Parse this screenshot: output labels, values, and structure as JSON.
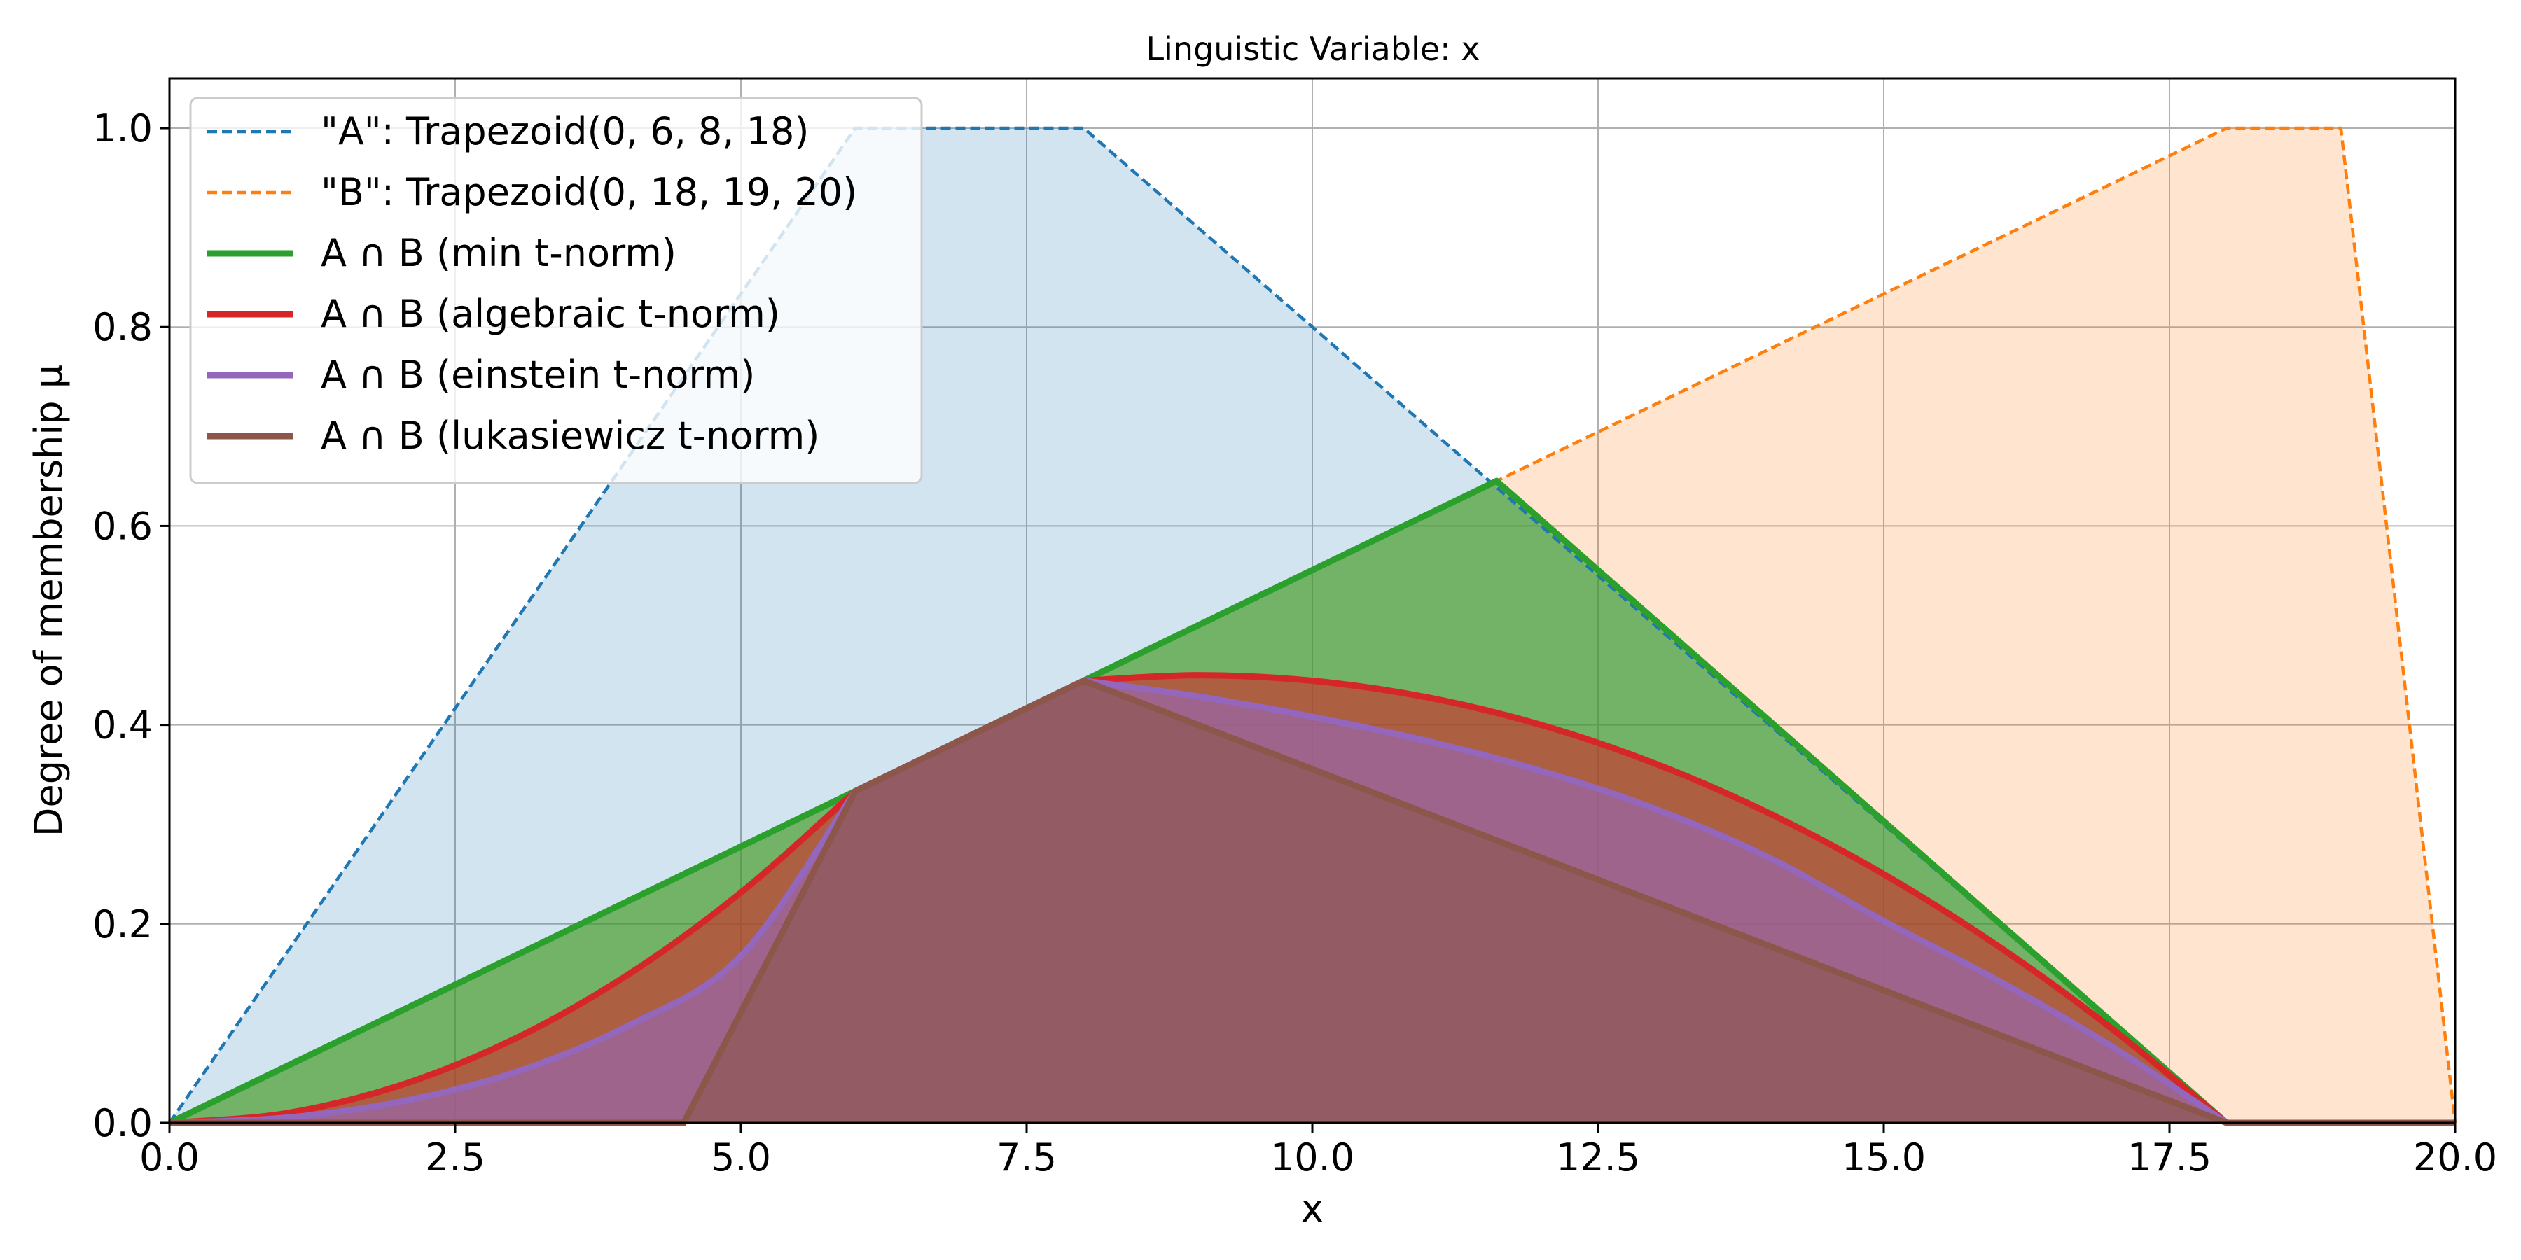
{
  "chart_data": {
    "type": "line",
    "title": "Linguistic Variable: x",
    "xlabel": "x",
    "ylabel": "Degree of membership μ",
    "xlim": [
      0,
      20
    ],
    "ylim": [
      0,
      1.05
    ],
    "xticks": [
      "0.0",
      "2.5",
      "5.0",
      "7.5",
      "10.0",
      "12.5",
      "15.0",
      "17.5",
      "20.0"
    ],
    "yticks": [
      "0.0",
      "0.2",
      "0.4",
      "0.6",
      "0.8",
      "1.0"
    ],
    "grid": true,
    "legend_position": "top-left",
    "series": [
      {
        "name": "\"A\": Trapezoid(0, 6, 8, 18)",
        "style": "dashed",
        "color": "#1f77b4",
        "fill": "#1f77b4",
        "x": [
          0,
          6,
          8,
          18,
          20
        ],
        "y": [
          0,
          1,
          1,
          0,
          0
        ]
      },
      {
        "name": "\"B\": Trapezoid(0, 18, 19, 20)",
        "style": "dashed",
        "color": "#ff7f0e",
        "fill": "#ff7f0e",
        "x": [
          0,
          18,
          19,
          20
        ],
        "y": [
          0,
          1,
          1,
          0
        ]
      },
      {
        "name": "A ∩ B (min t-norm)",
        "style": "solid",
        "color": "#2ca02c",
        "fill": "#2ca02c",
        "x": [
          0,
          11.6129,
          18,
          20
        ],
        "y": [
          0,
          0.6452,
          0,
          0
        ]
      },
      {
        "name": "A ∩ B (algebraic t-norm)",
        "style": "solid",
        "color": "#d62728",
        "fill": "#d62728",
        "x": [
          0,
          1,
          2,
          3,
          4,
          5,
          6,
          7,
          8,
          9,
          10,
          11,
          12,
          13,
          14,
          15,
          16,
          17,
          18,
          20
        ],
        "y": [
          0,
          0.0093,
          0.037,
          0.0833,
          0.1481,
          0.2315,
          0.3333,
          0.3889,
          0.4444,
          0.45,
          0.4444,
          0.4278,
          0.4,
          0.3611,
          0.3111,
          0.25,
          0.1778,
          0.0944,
          0,
          0
        ]
      },
      {
        "name": "A ∩ B (einstein t-norm)",
        "style": "solid",
        "color": "#9467bd",
        "fill": "#9467bd",
        "x": [
          0,
          1,
          2,
          3,
          4,
          5,
          6,
          7,
          8,
          9,
          10,
          11,
          12,
          13,
          14,
          15,
          16,
          17,
          18,
          20
        ],
        "y": [
          0,
          0.005,
          0.0208,
          0.05,
          0.0968,
          0.1678,
          0.3333,
          0.3889,
          0.4444,
          0.4286,
          0.4082,
          0.3839,
          0.3538,
          0.3156,
          0.2664,
          0.2029,
          0.1431,
          0.0764,
          0,
          0
        ]
      },
      {
        "name": "A ∩ B (lukasiewicz t-norm)",
        "style": "solid",
        "color": "#8c564b",
        "fill": "#8c564b",
        "x": [
          0,
          4.5,
          6,
          8,
          18,
          20
        ],
        "y": [
          0,
          0,
          0.3333,
          0.4444,
          0,
          0
        ]
      }
    ]
  }
}
